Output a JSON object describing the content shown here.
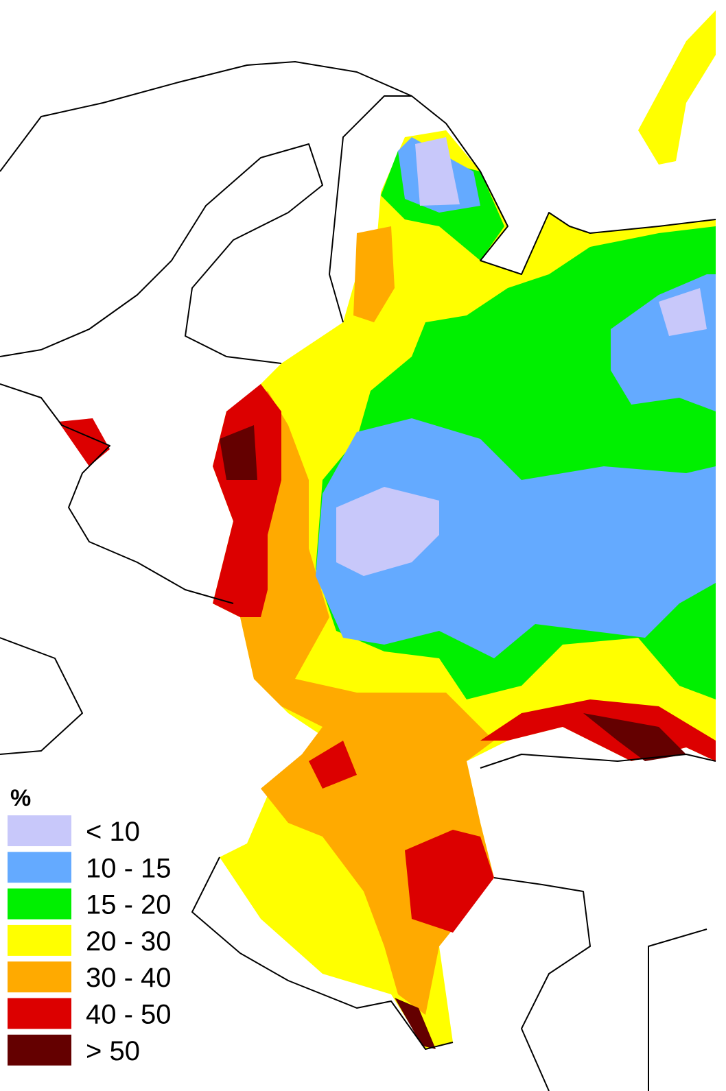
{
  "legend": {
    "title": "%",
    "items": [
      {
        "label": "< 10",
        "color": "#c8c8fa"
      },
      {
        "label": "10 - 15",
        "color": "#64aaff"
      },
      {
        "label": "15 - 20",
        "color": "#00f000"
      },
      {
        "label": "20 - 30",
        "color": "#ffff00"
      },
      {
        "label": "30 - 40",
        "color": "#ffaa00"
      },
      {
        "label": "40 - 50",
        "color": "#dc0000"
      },
      {
        "label": "> 50",
        "color": "#640000"
      }
    ]
  }
}
